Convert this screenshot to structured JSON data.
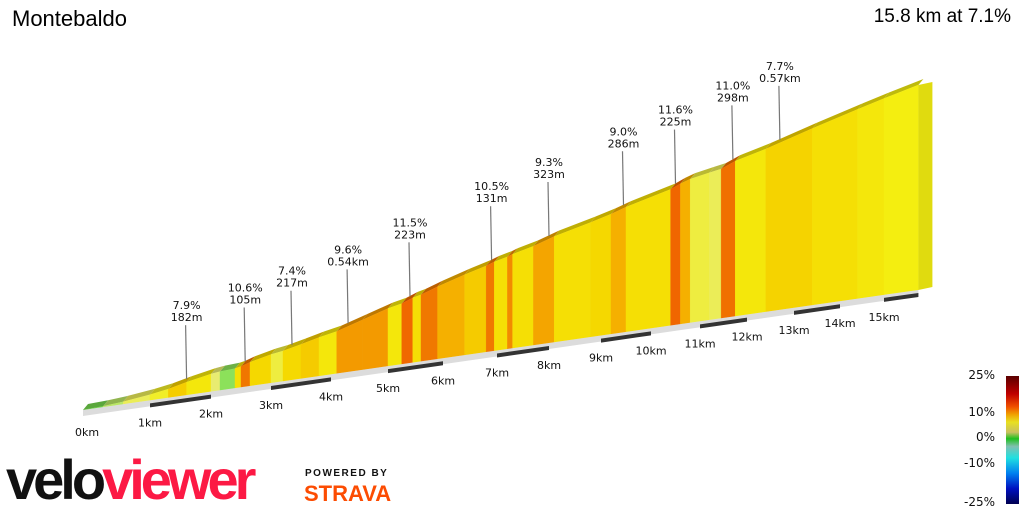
{
  "header": {
    "title": "Montebaldo",
    "summary": "15.8 km at 7.1%"
  },
  "chart_data": {
    "type": "area",
    "title": "Montebaldo",
    "total_distance_km": 15.8,
    "average_gradient_pct": 7.1,
    "x_ticks": [
      "0km",
      "1km",
      "2km",
      "3km",
      "4km",
      "5km",
      "6km",
      "7km",
      "8km",
      "9km",
      "10km",
      "11km",
      "12km",
      "13km",
      "14km",
      "15km"
    ],
    "segments": [
      {
        "from_km": 0,
        "to_km": 0.3,
        "gradient": 1.5
      },
      {
        "from_km": 0.3,
        "to_km": 0.6,
        "gradient": 3
      },
      {
        "from_km": 0.6,
        "to_km": 1.0,
        "gradient": 4.5
      },
      {
        "from_km": 1.0,
        "to_km": 1.3,
        "gradient": 5.5
      },
      {
        "from_km": 1.3,
        "to_km": 1.6,
        "gradient": 7.9
      },
      {
        "from_km": 1.6,
        "to_km": 2.0,
        "gradient": 6.5
      },
      {
        "from_km": 2.0,
        "to_km": 2.15,
        "gradient": 4
      },
      {
        "from_km": 2.15,
        "to_km": 2.4,
        "gradient": 2
      },
      {
        "from_km": 2.4,
        "to_km": 2.5,
        "gradient": 7
      },
      {
        "from_km": 2.5,
        "to_km": 2.65,
        "gradient": 10.6
      },
      {
        "from_km": 2.65,
        "to_km": 3.0,
        "gradient": 7.5
      },
      {
        "from_km": 3.0,
        "to_km": 3.2,
        "gradient": 5
      },
      {
        "from_km": 3.2,
        "to_km": 3.5,
        "gradient": 7.4
      },
      {
        "from_km": 3.5,
        "to_km": 3.8,
        "gradient": 8
      },
      {
        "from_km": 3.8,
        "to_km": 4.1,
        "gradient": 6.5
      },
      {
        "from_km": 4.1,
        "to_km": 4.55,
        "gradient": 9.6
      },
      {
        "from_km": 4.55,
        "to_km": 5.0,
        "gradient": 9.6
      },
      {
        "from_km": 5.0,
        "to_km": 5.25,
        "gradient": 6.5
      },
      {
        "from_km": 5.25,
        "to_km": 5.45,
        "gradient": 11.5
      },
      {
        "from_km": 5.45,
        "to_km": 5.6,
        "gradient": 7
      },
      {
        "from_km": 5.6,
        "to_km": 5.9,
        "gradient": 10.5
      },
      {
        "from_km": 5.9,
        "to_km": 6.4,
        "gradient": 9
      },
      {
        "from_km": 6.4,
        "to_km": 6.8,
        "gradient": 8
      },
      {
        "from_km": 6.8,
        "to_km": 6.95,
        "gradient": 10.5
      },
      {
        "from_km": 6.95,
        "to_km": 7.2,
        "gradient": 7
      },
      {
        "from_km": 7.2,
        "to_km": 7.3,
        "gradient": 10
      },
      {
        "from_km": 7.3,
        "to_km": 7.7,
        "gradient": 7
      },
      {
        "from_km": 7.7,
        "to_km": 8.1,
        "gradient": 9.3
      },
      {
        "from_km": 8.1,
        "to_km": 8.8,
        "gradient": 7
      },
      {
        "from_km": 8.8,
        "to_km": 9.2,
        "gradient": 7.5
      },
      {
        "from_km": 9.2,
        "to_km": 9.5,
        "gradient": 9.0
      },
      {
        "from_km": 9.5,
        "to_km": 10.4,
        "gradient": 7
      },
      {
        "from_km": 10.4,
        "to_km": 10.6,
        "gradient": 11.6
      },
      {
        "from_km": 10.6,
        "to_km": 10.8,
        "gradient": 9
      },
      {
        "from_km": 10.8,
        "to_km": 11.2,
        "gradient": 5
      },
      {
        "from_km": 11.2,
        "to_km": 11.45,
        "gradient": 4.5
      },
      {
        "from_km": 11.45,
        "to_km": 11.75,
        "gradient": 11.0
      },
      {
        "from_km": 11.75,
        "to_km": 12.4,
        "gradient": 6.5
      },
      {
        "from_km": 12.4,
        "to_km": 13.4,
        "gradient": 7.7
      },
      {
        "from_km": 13.4,
        "to_km": 14.4,
        "gradient": 7
      },
      {
        "from_km": 14.4,
        "to_km": 15.0,
        "gradient": 6.5
      },
      {
        "from_km": 15.0,
        "to_km": 15.8,
        "gradient": 6
      }
    ],
    "annotations": [
      {
        "km": 1.6,
        "gradient": "7.9%",
        "length": "182m"
      },
      {
        "km": 2.57,
        "gradient": "10.6%",
        "length": "105m"
      },
      {
        "km": 3.35,
        "gradient": "7.4%",
        "length": "217m"
      },
      {
        "km": 4.3,
        "gradient": "9.6%",
        "length": "0.54km"
      },
      {
        "km": 5.4,
        "gradient": "11.5%",
        "length": "223m"
      },
      {
        "km": 6.9,
        "gradient": "10.5%",
        "length": "131m"
      },
      {
        "km": 8.0,
        "gradient": "9.3%",
        "length": "323m"
      },
      {
        "km": 9.45,
        "gradient": "9.0%",
        "length": "286m"
      },
      {
        "km": 10.5,
        "gradient": "11.6%",
        "length": "225m"
      },
      {
        "km": 11.7,
        "gradient": "11.0%",
        "length": "298m"
      },
      {
        "km": 12.7,
        "gradient": "7.7%",
        "length": "0.57km"
      }
    ],
    "legend": {
      "labels": [
        "25%",
        "10%",
        "0%",
        "-10%",
        "-25%"
      ],
      "type": "gradient colour scale"
    }
  },
  "branding": {
    "logo_part1": "velo",
    "logo_part2": "viewer",
    "powered_by": "POWERED BY",
    "strava": "STRAVA"
  }
}
